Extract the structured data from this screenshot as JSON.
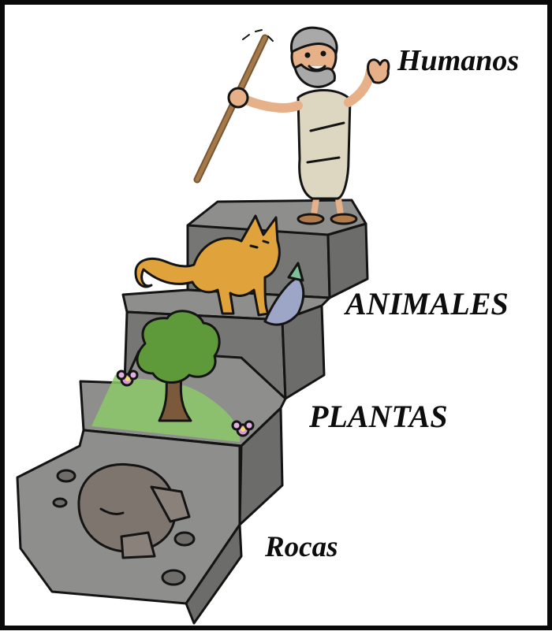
{
  "labels": {
    "humanos": "Humanos",
    "animales": "ANIMALES",
    "plantas": "PLANTAS",
    "rocas": "Rocas"
  },
  "steps": [
    "Rocas",
    "PLANTAS",
    "ANIMALES",
    "Humanos"
  ],
  "colors": {
    "stone_top": "#8e8e8c",
    "stone_face": "#767674",
    "outline": "#141414",
    "cat": "#e0a23a",
    "tree": "#5f9a3a",
    "grass": "#8cc96a",
    "robe": "#ddd7c2",
    "skin": "#e6b088"
  },
  "icons": [
    "rock-icon",
    "flower-icon",
    "tree-icon",
    "cat-icon",
    "fish-icon",
    "human-icon",
    "staff-icon"
  ]
}
